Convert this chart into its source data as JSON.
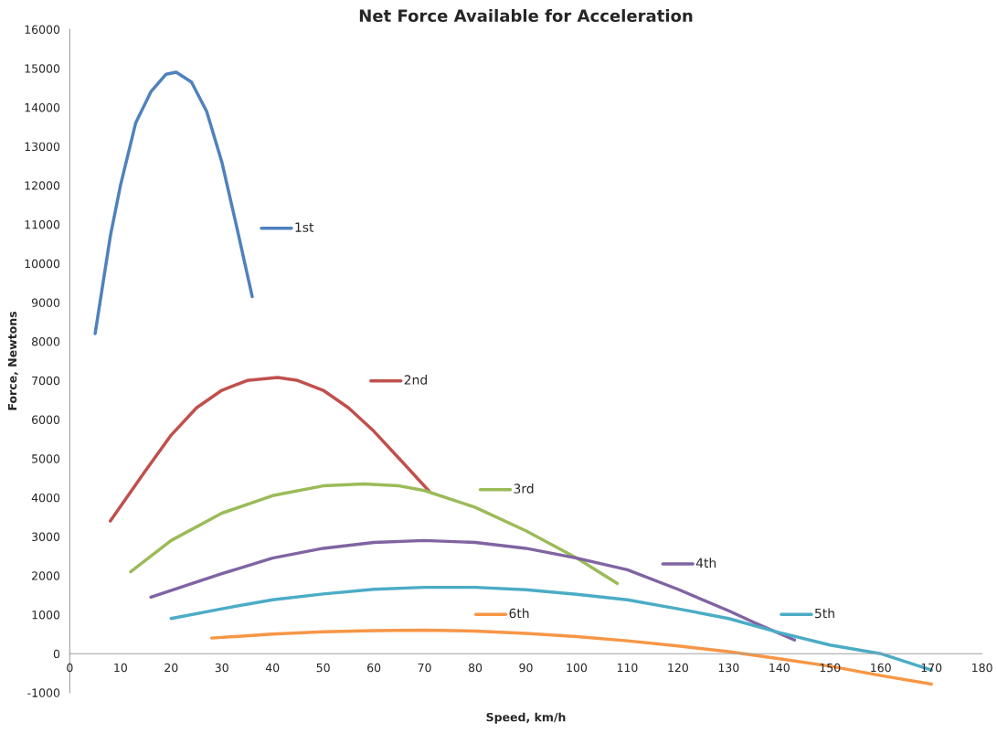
{
  "chart_data": {
    "type": "line",
    "title": "Net Force Available for Acceleration",
    "xlabel": "Speed, km/h",
    "ylabel": "Force, Newtons",
    "xlim": [
      0,
      180
    ],
    "xticks": [
      0,
      10,
      20,
      30,
      40,
      50,
      60,
      70,
      80,
      90,
      100,
      110,
      120,
      130,
      140,
      150,
      160,
      170,
      180
    ],
    "ylim": [
      -1000,
      16000
    ],
    "yticks": [
      -1000,
      0,
      1000,
      2000,
      3000,
      4000,
      5000,
      6000,
      7000,
      8000,
      9000,
      10000,
      11000,
      12000,
      13000,
      14000,
      15000,
      16000
    ],
    "grid": false,
    "legend": "right",
    "marker": "none",
    "line_style": "solid",
    "series": [
      {
        "name": "1st",
        "color": "#4f81bd",
        "x": [
          5,
          8,
          10,
          13,
          16,
          19,
          21,
          24,
          27,
          30,
          33,
          36
        ],
        "values": [
          8200,
          10700,
          12000,
          13600,
          14400,
          14850,
          14900,
          14650,
          13900,
          12600,
          10900,
          9150
        ]
      },
      {
        "name": "2nd",
        "color": "#c0504d",
        "x": [
          8,
          15,
          20,
          25,
          30,
          35,
          41,
          45,
          50,
          55,
          60,
          65,
          71
        ],
        "values": [
          3400,
          4700,
          5600,
          6300,
          6750,
          7000,
          7080,
          7000,
          6750,
          6300,
          5700,
          5000,
          4150
        ]
      },
      {
        "name": "3rd",
        "color": "#9bbb59",
        "x": [
          12,
          20,
          30,
          40,
          50,
          58,
          65,
          70,
          80,
          90,
          100,
          108
        ],
        "values": [
          2100,
          2900,
          3600,
          4050,
          4300,
          4350,
          4300,
          4180,
          3750,
          3150,
          2450,
          1800
        ]
      },
      {
        "name": "4th",
        "color": "#8064a2",
        "x": [
          16,
          30,
          40,
          50,
          60,
          70,
          80,
          90,
          100,
          110,
          120,
          130,
          135,
          143
        ],
        "values": [
          1450,
          2050,
          2450,
          2700,
          2850,
          2900,
          2850,
          2700,
          2450,
          2150,
          1650,
          1100,
          800,
          350
        ]
      },
      {
        "name": "5th",
        "color": "#4bacc6",
        "x": [
          20,
          30,
          40,
          50,
          60,
          70,
          80,
          90,
          100,
          110,
          120,
          130,
          140,
          150,
          160,
          170
        ],
        "values": [
          900,
          1150,
          1380,
          1530,
          1650,
          1700,
          1700,
          1640,
          1520,
          1380,
          1150,
          900,
          540,
          220,
          0,
          -420
        ]
      },
      {
        "name": "6th",
        "color": "#f79646",
        "x": [
          28,
          40,
          50,
          60,
          70,
          80,
          90,
          100,
          110,
          120,
          130,
          140,
          150,
          160,
          170
        ],
        "values": [
          400,
          500,
          560,
          590,
          600,
          580,
          520,
          440,
          330,
          200,
          50,
          -130,
          -320,
          -560,
          -780
        ]
      }
    ]
  }
}
